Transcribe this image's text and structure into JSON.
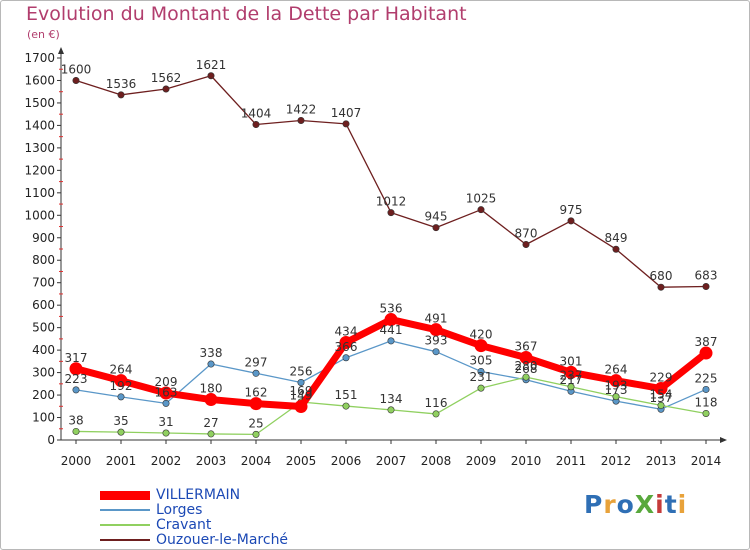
{
  "title": "Evolution du Montant de la Dette par Habitant",
  "unit": "(en €)",
  "logo": {
    "text": "ProXiti",
    "colors": [
      "#2f6fb5",
      "#e8a23a",
      "#2f6fb5",
      "#58a83c",
      "#c53b3b",
      "#2f6fb5",
      "#e8a23a"
    ]
  },
  "chart_data": {
    "type": "line",
    "x": [
      "2000",
      "2001",
      "2002",
      "2003",
      "2004",
      "2005",
      "2006",
      "2007",
      "2008",
      "2009",
      "2010",
      "2011",
      "2012",
      "2013",
      "2014"
    ],
    "ylim": [
      0,
      1700
    ],
    "yticks": [
      0,
      100,
      200,
      300,
      400,
      500,
      600,
      700,
      800,
      900,
      1000,
      1100,
      1200,
      1300,
      1400,
      1500,
      1600,
      1700
    ],
    "grid": false,
    "legend_position": "bottom-left",
    "series": [
      {
        "name": "Ouzouer-le-Marché",
        "color": "#6e1f1f",
        "values": [
          1600,
          1536,
          1562,
          1621,
          1404,
          1422,
          1407,
          1012,
          945,
          1025,
          870,
          975,
          849,
          680,
          683
        ]
      },
      {
        "name": "Lorges",
        "color": "#5a97c8",
        "values": [
          223,
          192,
          163,
          338,
          297,
          256,
          366,
          441,
          393,
          305,
          268,
          217,
          173,
          137,
          225
        ]
      },
      {
        "name": "Cravant",
        "color": "#90d060",
        "values": [
          38,
          35,
          31,
          27,
          25,
          169,
          151,
          134,
          116,
          231,
          280,
          237,
          193,
          154,
          118
        ]
      },
      {
        "name": "VILLERMAIN",
        "color": "#ff0000",
        "values": [
          317,
          264,
          209,
          180,
          162,
          149,
          434,
          536,
          491,
          420,
          367,
          301,
          264,
          229,
          387
        ]
      }
    ]
  }
}
